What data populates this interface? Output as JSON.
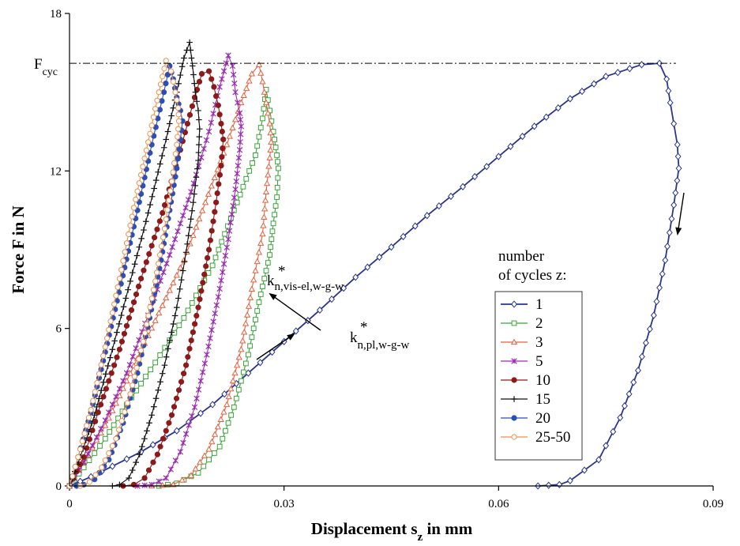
{
  "chart_data": {
    "type": "line",
    "xlabel_main": "Displacement s",
    "xlabel_sub": "z",
    "xlabel_unit": " in mm",
    "ylabel": "Force F in N",
    "xlim": [
      0,
      0.09
    ],
    "ylim": [
      0,
      18
    ],
    "xticks": [
      0,
      0.03,
      0.06,
      0.09
    ],
    "xtick_labels": [
      "0",
      "0.03",
      "0.06",
      "0.09"
    ],
    "yticks": [
      0,
      6,
      12,
      18
    ],
    "ytick_labels": [
      "0",
      "6",
      "12",
      "18"
    ],
    "fcyc_value": 16.1,
    "fcyc_label_main": "F",
    "fcyc_label_sub": "cyc",
    "annotation_vis": {
      "main": "k",
      "sup": "*",
      "sub": "n,vis-el,w-g-w"
    },
    "annotation_pl": {
      "main": "k",
      "sup": "*",
      "sub": "n,pl,w-g-w"
    },
    "legend_title_1": "number",
    "legend_title_2": "of cycles z:",
    "legend_position": "right-center",
    "series": [
      {
        "name": "1",
        "color": "#2a3590",
        "marker": "diamond",
        "points": [
          [
            0,
            0
          ],
          [
            0.003,
            0.35
          ],
          [
            0.006,
            0.75
          ],
          [
            0.01,
            1.3
          ],
          [
            0.015,
            2.1
          ],
          [
            0.02,
            3.1
          ],
          [
            0.025,
            4.3
          ],
          [
            0.03,
            5.5
          ],
          [
            0.035,
            6.7
          ],
          [
            0.04,
            7.95
          ],
          [
            0.045,
            9.1
          ],
          [
            0.05,
            10.3
          ],
          [
            0.055,
            11.4
          ],
          [
            0.06,
            12.55
          ],
          [
            0.065,
            13.7
          ],
          [
            0.07,
            14.75
          ],
          [
            0.075,
            15.6
          ],
          [
            0.08,
            16.05
          ],
          [
            0.0825,
            16.1
          ],
          [
            0.0835,
            15.5
          ],
          [
            0.084,
            14.6
          ],
          [
            0.0845,
            13.8
          ],
          [
            0.085,
            13.0
          ],
          [
            0.0852,
            12.1
          ],
          [
            0.0845,
            10.7
          ],
          [
            0.0833,
            8.6
          ],
          [
            0.0817,
            6.5
          ],
          [
            0.0795,
            4.4
          ],
          [
            0.077,
            2.6
          ],
          [
            0.074,
            1.0
          ],
          [
            0.07,
            0.2
          ],
          [
            0.0685,
            0.05
          ],
          [
            0.0655,
            0
          ]
        ]
      },
      {
        "name": "2",
        "color": "#3aa53a",
        "marker": "square",
        "points": [
          [
            0,
            0
          ],
          [
            0.002,
            0.7
          ],
          [
            0.005,
            1.8
          ],
          [
            0.008,
            3.1
          ],
          [
            0.012,
            4.7
          ],
          [
            0.016,
            6.4
          ],
          [
            0.02,
            8.4
          ],
          [
            0.023,
            10.5
          ],
          [
            0.026,
            12.6
          ],
          [
            0.027,
            14.0
          ],
          [
            0.0275,
            15.1
          ],
          [
            0.028,
            14.3
          ],
          [
            0.0285,
            13.5
          ],
          [
            0.029,
            12.6
          ],
          [
            0.0292,
            12.1
          ],
          [
            0.029,
            11.0
          ],
          [
            0.0285,
            10.0
          ],
          [
            0.028,
            8.8
          ],
          [
            0.0265,
            7.0
          ],
          [
            0.025,
            5.0
          ],
          [
            0.023,
            3.0
          ],
          [
            0.021,
            1.5
          ],
          [
            0.018,
            0.5
          ],
          [
            0.015,
            0.1
          ],
          [
            0.0125,
            0
          ]
        ]
      },
      {
        "name": "3",
        "color": "#e5603f",
        "marker": "triangle",
        "points": [
          [
            0,
            0
          ],
          [
            0.002,
            0.9
          ],
          [
            0.005,
            2.3
          ],
          [
            0.008,
            4.0
          ],
          [
            0.012,
            6.3
          ],
          [
            0.016,
            8.6
          ],
          [
            0.019,
            10.8
          ],
          [
            0.022,
            13.0
          ],
          [
            0.024,
            14.6
          ],
          [
            0.0255,
            15.7
          ],
          [
            0.0265,
            16.05
          ],
          [
            0.027,
            15.4
          ],
          [
            0.0275,
            14.6
          ],
          [
            0.028,
            13.8
          ],
          [
            0.0282,
            13.1
          ],
          [
            0.028,
            12.5
          ],
          [
            0.0275,
            11.2
          ],
          [
            0.027,
            9.6
          ],
          [
            0.0255,
            7.5
          ],
          [
            0.024,
            5.2
          ],
          [
            0.022,
            3.1
          ],
          [
            0.0195,
            1.4
          ],
          [
            0.017,
            0.4
          ],
          [
            0.0145,
            0.05
          ],
          [
            0.0115,
            0
          ]
        ]
      },
      {
        "name": "5",
        "color": "#9b2cb0",
        "marker": "star",
        "points": [
          [
            0,
            0
          ],
          [
            0.002,
            0.9
          ],
          [
            0.005,
            2.5
          ],
          [
            0.008,
            4.3
          ],
          [
            0.011,
            6.5
          ],
          [
            0.014,
            8.8
          ],
          [
            0.017,
            11.2
          ],
          [
            0.0195,
            13.5
          ],
          [
            0.021,
            15.2
          ],
          [
            0.0222,
            16.4
          ],
          [
            0.0228,
            16.0
          ],
          [
            0.0232,
            15.0
          ],
          [
            0.0238,
            14.2
          ],
          [
            0.024,
            13.7
          ],
          [
            0.0238,
            12.8
          ],
          [
            0.0232,
            11.3
          ],
          [
            0.0222,
            9.4
          ],
          [
            0.0208,
            7.2
          ],
          [
            0.0192,
            5.0
          ],
          [
            0.0175,
            3.0
          ],
          [
            0.0155,
            1.3
          ],
          [
            0.0135,
            0.3
          ],
          [
            0.0115,
            0.05
          ],
          [
            0.0095,
            0
          ]
        ]
      },
      {
        "name": "10",
        "color": "#8c1a1a",
        "marker": "circle",
        "points": [
          [
            0,
            0
          ],
          [
            0.002,
            1.1
          ],
          [
            0.004,
            2.8
          ],
          [
            0.007,
            5.2
          ],
          [
            0.01,
            7.9
          ],
          [
            0.013,
            10.4
          ],
          [
            0.0155,
            12.8
          ],
          [
            0.0175,
            14.8
          ],
          [
            0.0185,
            15.7
          ],
          [
            0.0195,
            15.8
          ],
          [
            0.0202,
            15.2
          ],
          [
            0.0208,
            14.5
          ],
          [
            0.0212,
            13.8
          ],
          [
            0.0215,
            13.2
          ],
          [
            0.0212,
            12.2
          ],
          [
            0.0205,
            10.8
          ],
          [
            0.0195,
            9.0
          ],
          [
            0.018,
            6.8
          ],
          [
            0.0163,
            4.6
          ],
          [
            0.0143,
            2.7
          ],
          [
            0.0123,
            1.2
          ],
          [
            0.0105,
            0.3
          ],
          [
            0.009,
            0.05
          ],
          [
            0.0075,
            0
          ]
        ]
      },
      {
        "name": "15",
        "color": "#111111",
        "marker": "plus",
        "points": [
          [
            0,
            0
          ],
          [
            0.0015,
            1.1
          ],
          [
            0.0035,
            2.7
          ],
          [
            0.006,
            5.2
          ],
          [
            0.0085,
            7.8
          ],
          [
            0.011,
            10.4
          ],
          [
            0.0135,
            13.2
          ],
          [
            0.015,
            15.0
          ],
          [
            0.016,
            16.3
          ],
          [
            0.0168,
            16.9
          ],
          [
            0.0172,
            16.0
          ],
          [
            0.0176,
            15.0
          ],
          [
            0.018,
            14.3
          ],
          [
            0.0182,
            13.6
          ],
          [
            0.018,
            12.4
          ],
          [
            0.0173,
            10.8
          ],
          [
            0.0163,
            8.9
          ],
          [
            0.015,
            6.8
          ],
          [
            0.0133,
            4.6
          ],
          [
            0.0115,
            2.7
          ],
          [
            0.0098,
            1.2
          ],
          [
            0.0083,
            0.3
          ],
          [
            0.007,
            0.05
          ],
          [
            0.006,
            0
          ]
        ]
      },
      {
        "name": "20",
        "color": "#2b4fb5",
        "marker": "circle",
        "points": [
          [
            0,
            0
          ],
          [
            0.0012,
            1.1
          ],
          [
            0.003,
            2.8
          ],
          [
            0.005,
            5.1
          ],
          [
            0.0072,
            7.7
          ],
          [
            0.0095,
            10.5
          ],
          [
            0.0115,
            13.0
          ],
          [
            0.0132,
            15.0
          ],
          [
            0.014,
            16.0
          ],
          [
            0.0145,
            15.5
          ],
          [
            0.015,
            14.8
          ],
          [
            0.0155,
            14.3
          ],
          [
            0.0158,
            13.9
          ],
          [
            0.0155,
            13.2
          ],
          [
            0.015,
            12.1
          ],
          [
            0.014,
            10.5
          ],
          [
            0.0128,
            8.6
          ],
          [
            0.0112,
            6.4
          ],
          [
            0.0095,
            4.3
          ],
          [
            0.0075,
            2.4
          ],
          [
            0.0055,
            1.0
          ],
          [
            0.0035,
            0.25
          ],
          [
            0.002,
            0.05
          ],
          [
            0.001,
            0
          ]
        ]
      },
      {
        "name": "25-50",
        "color": "#f0904a",
        "marker": "circle-open",
        "points": [
          [
            0,
            0
          ],
          [
            0.0012,
            1.1
          ],
          [
            0.003,
            2.9
          ],
          [
            0.005,
            5.3
          ],
          [
            0.007,
            7.9
          ],
          [
            0.009,
            10.6
          ],
          [
            0.011,
            13.1
          ],
          [
            0.0125,
            15.0
          ],
          [
            0.0135,
            16.2
          ],
          [
            0.0142,
            15.8
          ],
          [
            0.0148,
            15.0
          ],
          [
            0.0152,
            14.4
          ],
          [
            0.0153,
            13.9
          ],
          [
            0.015,
            13.0
          ],
          [
            0.0143,
            11.6
          ],
          [
            0.0133,
            9.8
          ],
          [
            0.012,
            7.8
          ],
          [
            0.0103,
            5.5
          ],
          [
            0.0085,
            3.5
          ],
          [
            0.0065,
            1.8
          ],
          [
            0.0045,
            0.7
          ],
          [
            0.0028,
            0.15
          ],
          [
            0.0015,
            0
          ]
        ]
      }
    ]
  }
}
